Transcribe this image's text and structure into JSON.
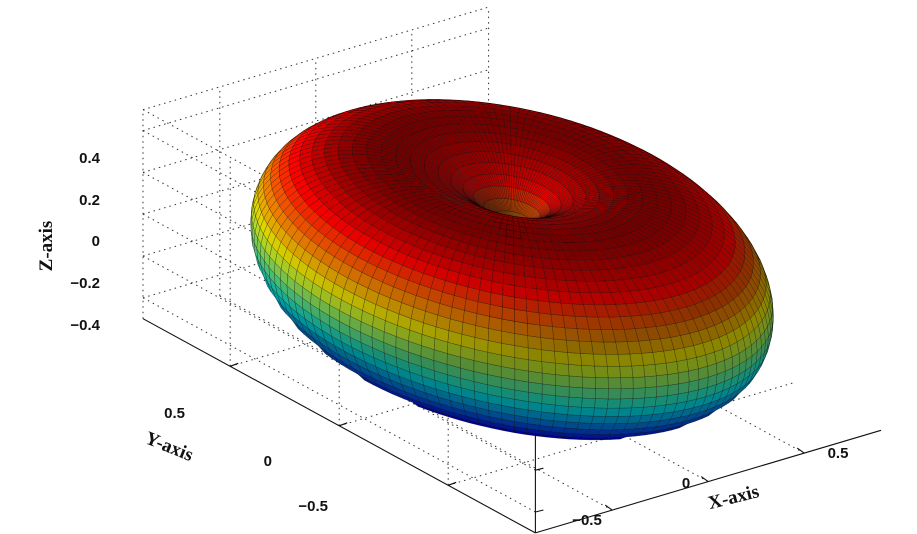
{
  "chart_data": {
    "type": "surface",
    "surface": "torus (radiation pattern)",
    "colormap": "jet",
    "grid": true,
    "x": {
      "label": "X-axis",
      "ticks": [
        "−0.5",
        "0",
        "0.5"
      ],
      "tick_values": [
        -0.5,
        0,
        0.5
      ],
      "range": [
        -0.9,
        0.9
      ]
    },
    "y": {
      "label": "Y-axis",
      "ticks": [
        "−0.5",
        "0",
        "0.5"
      ],
      "tick_values": [
        -0.5,
        0,
        0.5
      ],
      "range": [
        -0.9,
        0.9
      ]
    },
    "z": {
      "label": "Z-axis",
      "ticks": [
        "0.4",
        "0.2",
        "0",
        "−0.2",
        "−0.4"
      ],
      "tick_values": [
        0.4,
        0.2,
        0,
        -0.2,
        -0.4
      ],
      "range": [
        -0.5,
        0.5
      ]
    },
    "torus": {
      "major_radius": 0.45,
      "minor_radius": 0.45
    }
  }
}
